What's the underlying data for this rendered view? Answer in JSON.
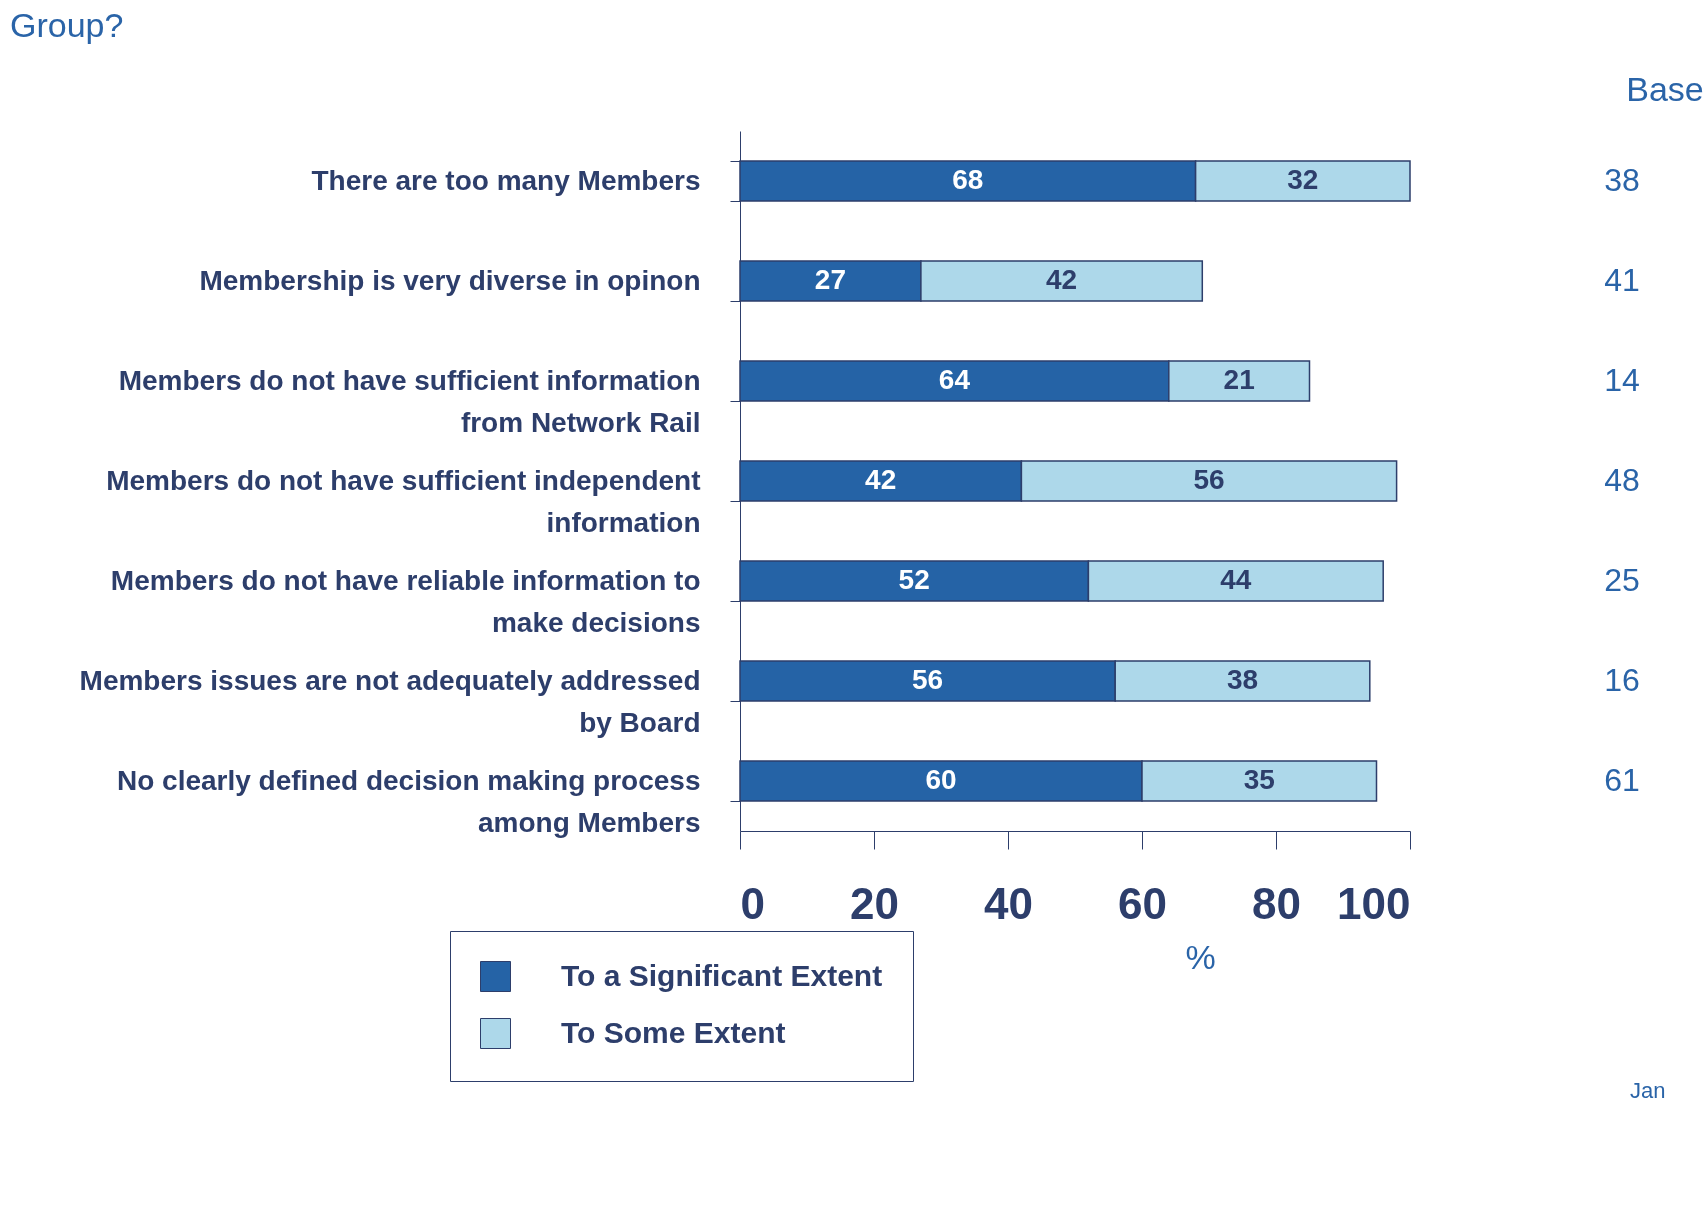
{
  "chart_data": {
    "type": "bar",
    "orientation": "horizontal",
    "stacked": true,
    "title": "Group?",
    "xlabel": "%",
    "categories": [
      "There are too many Members",
      "Membership is very diverse in opinon",
      "Members do not have sufficient information from Network Rail",
      "Members do not have sufficient independent information",
      "Members do not have reliable information to make decisions",
      "Members issues are not adequately addressed by Board",
      "No clearly defined decision making process among Members"
    ],
    "series": [
      {
        "name": "To a Significant Extent",
        "color": "#2563a6",
        "values": [
          68,
          27,
          64,
          42,
          52,
          56,
          60
        ]
      },
      {
        "name": "To Some Extent",
        "color": "#add8ea",
        "values": [
          32,
          42,
          21,
          56,
          44,
          38,
          35
        ]
      }
    ],
    "xlim": [
      0,
      100
    ],
    "xticks": [
      0,
      20,
      40,
      60,
      80,
      100
    ],
    "data_labels": true,
    "legend": "bottom",
    "grid": false,
    "annotations": [
      "Base",
      "38",
      "41",
      "14",
      "48",
      "25",
      "16",
      "61",
      "Jan"
    ]
  }
}
